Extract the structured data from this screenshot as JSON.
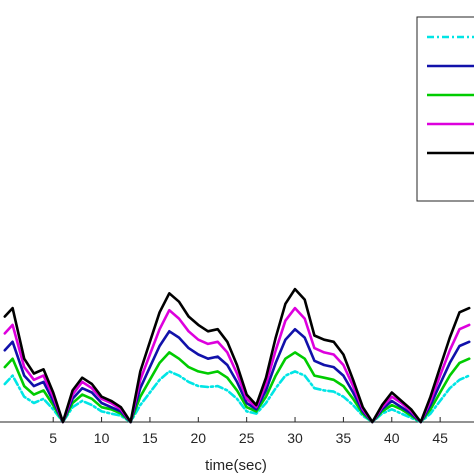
{
  "chart_data": {
    "type": "line",
    "xlabel": "time(sec)",
    "ylabel": "",
    "title": "",
    "xlim": [
      -0.5,
      48.5
    ],
    "ylim": [
      0,
      1
    ],
    "xticks": [
      5,
      10,
      15,
      20,
      25,
      30,
      35,
      40,
      45
    ],
    "grid": false,
    "legend": {
      "placement": "top-right",
      "entries_visible": false
    },
    "x": [
      0,
      0.8,
      2,
      3,
      4,
      5,
      6,
      7,
      8,
      9,
      10,
      11,
      12,
      13,
      14,
      15,
      16,
      17,
      18,
      19,
      20,
      21,
      22,
      23,
      24,
      25,
      26,
      27,
      28,
      29,
      30,
      31,
      32,
      33,
      34,
      35,
      36,
      37,
      38,
      39,
      40,
      41,
      42,
      43,
      44,
      45,
      46,
      47,
      48
    ],
    "series": [
      {
        "color": "#00e5e5",
        "dash": "dashdot",
        "values": [
          0.09,
          0.11,
          0.06,
          0.045,
          0.055,
          0.03,
          0.0,
          0.035,
          0.05,
          0.04,
          0.025,
          0.02,
          0.015,
          0.0,
          0.04,
          0.07,
          0.1,
          0.12,
          0.11,
          0.095,
          0.085,
          0.083,
          0.085,
          0.075,
          0.055,
          0.025,
          0.02,
          0.045,
          0.08,
          0.11,
          0.12,
          0.11,
          0.08,
          0.075,
          0.072,
          0.06,
          0.04,
          0.015,
          0.0,
          0.02,
          0.03,
          0.02,
          0.01,
          0.0,
          0.02,
          0.05,
          0.08,
          0.1,
          0.11
        ]
      },
      {
        "color": "#00cc00",
        "values": [
          0.13,
          0.15,
          0.085,
          0.065,
          0.075,
          0.04,
          0.0,
          0.045,
          0.065,
          0.055,
          0.035,
          0.03,
          0.02,
          0.0,
          0.06,
          0.1,
          0.14,
          0.165,
          0.15,
          0.13,
          0.12,
          0.115,
          0.12,
          0.105,
          0.075,
          0.035,
          0.025,
          0.06,
          0.11,
          0.15,
          0.165,
          0.15,
          0.11,
          0.105,
          0.1,
          0.085,
          0.055,
          0.02,
          0.0,
          0.025,
          0.04,
          0.03,
          0.015,
          0.0,
          0.03,
          0.07,
          0.11,
          0.14,
          0.15
        ]
      },
      {
        "color": "#1111aa",
        "values": [
          0.17,
          0.19,
          0.11,
          0.085,
          0.095,
          0.05,
          0.0,
          0.055,
          0.08,
          0.07,
          0.045,
          0.035,
          0.025,
          0.0,
          0.08,
          0.13,
          0.18,
          0.215,
          0.2,
          0.175,
          0.16,
          0.15,
          0.155,
          0.135,
          0.095,
          0.045,
          0.03,
          0.075,
          0.14,
          0.195,
          0.22,
          0.2,
          0.145,
          0.135,
          0.13,
          0.11,
          0.07,
          0.025,
          0.0,
          0.03,
          0.05,
          0.035,
          0.02,
          0.0,
          0.04,
          0.09,
          0.14,
          0.18,
          0.19
        ]
      },
      {
        "color": "#dd00dd",
        "values": [
          0.21,
          0.23,
          0.13,
          0.1,
          0.11,
          0.06,
          0.0,
          0.065,
          0.095,
          0.08,
          0.055,
          0.045,
          0.03,
          0.0,
          0.1,
          0.16,
          0.22,
          0.265,
          0.245,
          0.215,
          0.195,
          0.185,
          0.19,
          0.165,
          0.115,
          0.055,
          0.035,
          0.09,
          0.17,
          0.24,
          0.27,
          0.245,
          0.175,
          0.165,
          0.16,
          0.135,
          0.085,
          0.03,
          0.0,
          0.035,
          0.06,
          0.045,
          0.025,
          0.0,
          0.05,
          0.11,
          0.17,
          0.22,
          0.23
        ]
      },
      {
        "color": "#000000",
        "values": [
          0.25,
          0.27,
          0.15,
          0.115,
          0.125,
          0.07,
          0.0,
          0.075,
          0.105,
          0.09,
          0.06,
          0.05,
          0.035,
          0.0,
          0.12,
          0.19,
          0.26,
          0.305,
          0.285,
          0.25,
          0.23,
          0.215,
          0.22,
          0.19,
          0.135,
          0.065,
          0.04,
          0.105,
          0.2,
          0.28,
          0.315,
          0.29,
          0.205,
          0.195,
          0.19,
          0.16,
          0.1,
          0.035,
          0.0,
          0.04,
          0.07,
          0.05,
          0.03,
          0.0,
          0.06,
          0.13,
          0.2,
          0.26,
          0.27
        ]
      }
    ]
  }
}
